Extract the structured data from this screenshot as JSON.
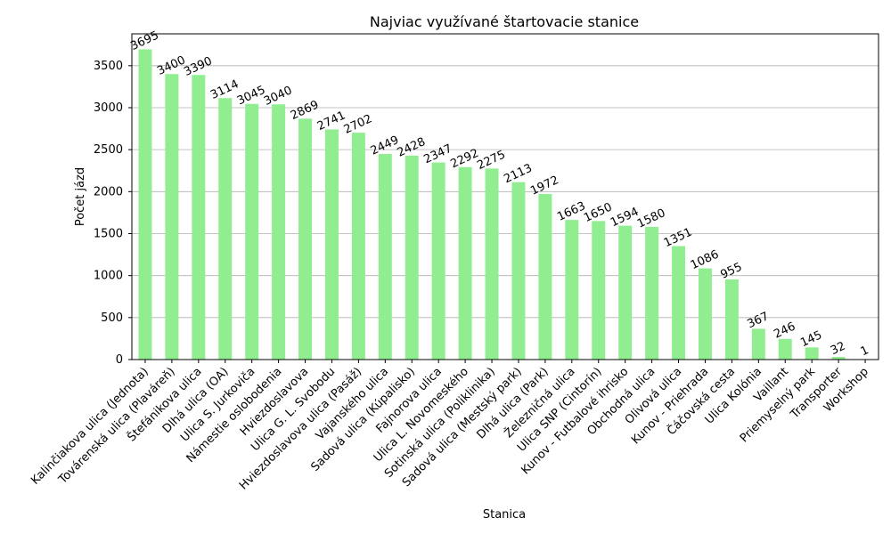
{
  "chart_data": {
    "type": "bar",
    "title": "Najviac využívané štartovacie stanice",
    "xlabel": "Stanica",
    "ylabel": "Počet jázd",
    "categories": [
      "Kalinčiakova ulica (Jednota)",
      "Továrenská ulica (Plaváreň)",
      "Štefánikova ulica",
      "Dlhá ulica (OA)",
      "Ulica S. Jurkoviča",
      "Námestie oslobodenia",
      "Hviezdoslavova",
      "Ulica G. L. Svobodu",
      "Hviezdoslavova ulica (Pasáž)",
      "Vajanského ulica",
      "Sadová ulica (Kúpalisko)",
      "Fajnorova ulica",
      "Ulica L. Novomeského",
      "Sotinská ulica (Poliklinika)",
      "Sadová ulica (Mestský park)",
      "Dlhá ulica (Park)",
      "Železničná ulica",
      "Ulica SNP (Cintorín)",
      "Kunov - Futbalové ihrisko",
      "Obchodná ulica",
      "Olivová ulica",
      "Kunov - Priehrada",
      "Čáčovská cesta",
      "Ulica Kolónia",
      "Vaillant",
      "Priemyselný park",
      "Transporter",
      "Workshop"
    ],
    "values": [
      3695,
      3400,
      3390,
      3114,
      3045,
      3040,
      2869,
      2741,
      2702,
      2449,
      2428,
      2347,
      2292,
      2275,
      2113,
      1972,
      1663,
      1650,
      1594,
      1580,
      1351,
      1086,
      955,
      367,
      246,
      145,
      32,
      1
    ],
    "color": "#90ee90",
    "ylim": [
      0,
      3879.75
    ],
    "yticks": [
      0,
      500,
      1000,
      1500,
      2000,
      2500,
      3000,
      3500
    ],
    "grid": true
  }
}
